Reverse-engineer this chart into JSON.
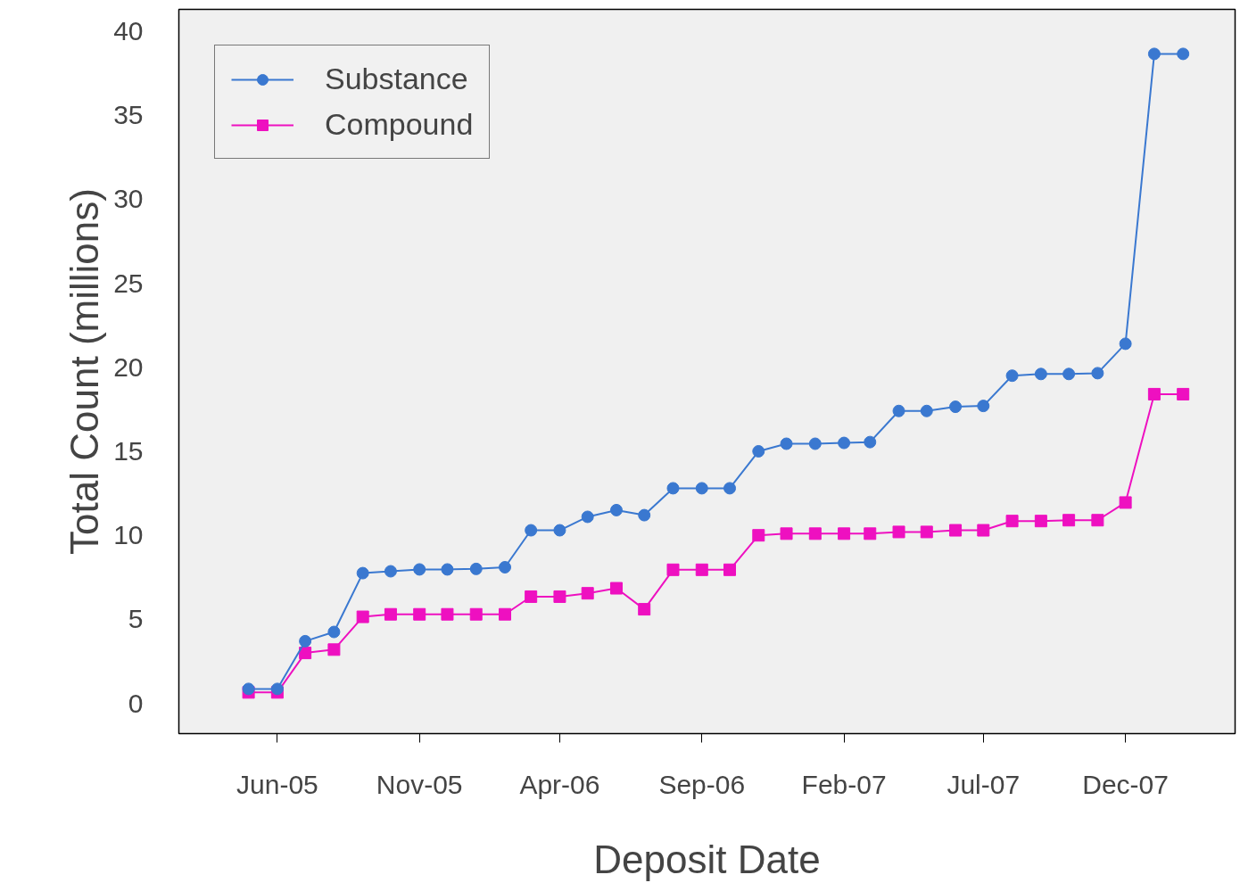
{
  "chart_data": {
    "type": "line",
    "xlabel": "Deposit Date",
    "ylabel": "Total Count (millions)",
    "x": [
      "2005-05",
      "2005-06",
      "2005-07",
      "2005-08",
      "2005-09",
      "2005-10",
      "2005-11",
      "2005-12",
      "2006-01",
      "2006-02",
      "2006-03",
      "2006-04",
      "2006-05",
      "2006-06",
      "2006-07",
      "2006-08",
      "2006-09",
      "2006-10",
      "2006-11",
      "2006-12",
      "2007-01",
      "2007-02",
      "2007-03",
      "2007-04",
      "2007-05",
      "2007-06",
      "2007-07",
      "2007-08",
      "2007-09",
      "2007-10",
      "2007-11",
      "2007-12",
      "2008-01",
      "2008-02"
    ],
    "series": [
      {
        "name": "Substance",
        "color": "#3a78d0",
        "marker": "circle",
        "values": [
          0.86,
          0.86,
          3.7,
          4.25,
          7.75,
          7.86,
          7.97,
          7.97,
          8.0,
          8.1,
          10.3,
          10.3,
          11.1,
          11.5,
          11.2,
          12.8,
          12.8,
          12.8,
          15.0,
          15.45,
          15.45,
          15.5,
          15.55,
          17.4,
          17.4,
          17.65,
          17.7,
          19.5,
          19.6,
          19.6,
          19.65,
          21.4,
          38.65,
          38.65
        ]
      },
      {
        "name": "Compound",
        "color": "#ee10c0",
        "marker": "square",
        "values": [
          0.65,
          0.65,
          3.0,
          3.2,
          5.15,
          5.3,
          5.3,
          5.3,
          5.3,
          5.3,
          6.35,
          6.35,
          6.55,
          6.85,
          5.6,
          7.95,
          7.95,
          7.95,
          10.0,
          10.1,
          10.1,
          10.1,
          10.1,
          10.2,
          10.2,
          10.3,
          10.3,
          10.85,
          10.85,
          10.9,
          10.9,
          11.95,
          18.4,
          18.4
        ]
      }
    ],
    "xlim": [
      "2005-02-15",
      "2008-03-28"
    ],
    "xticks": [
      {
        "value": "2005-06",
        "label": "Jun-05"
      },
      {
        "value": "2005-11",
        "label": "Nov-05"
      },
      {
        "value": "2006-04",
        "label": "Apr-06"
      },
      {
        "value": "2006-09",
        "label": "Sep-06"
      },
      {
        "value": "2007-02",
        "label": "Feb-07"
      },
      {
        "value": "2007-07",
        "label": "Jul-07"
      },
      {
        "value": "2007-12",
        "label": "Dec-07"
      }
    ],
    "ylim": [
      -1.8,
      41.3
    ],
    "yticks": [
      0,
      5,
      10,
      15,
      20,
      25,
      30,
      35,
      40
    ],
    "grid": false,
    "legend": "top left",
    "line_style": "solid"
  }
}
